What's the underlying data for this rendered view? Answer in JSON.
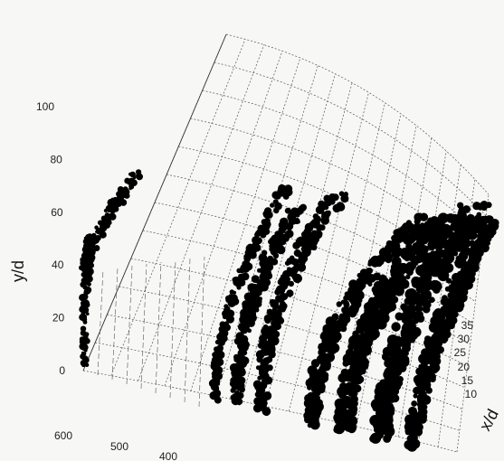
{
  "chart_data": {
    "type": "scatter",
    "projection": "3d",
    "title": "",
    "ylabel": "y/d",
    "zlabel": "x/d",
    "xlabel": "",
    "y_ticks": [
      0,
      20,
      40,
      60,
      80,
      100
    ],
    "z_ticks": [
      10,
      15,
      20,
      25,
      30,
      35
    ],
    "x_ticks": [
      600,
      500,
      400
    ],
    "ylim": [
      0,
      110
    ],
    "grid": true,
    "marker_color": "#000000",
    "grid_color": "#555555",
    "note": ""
  }
}
